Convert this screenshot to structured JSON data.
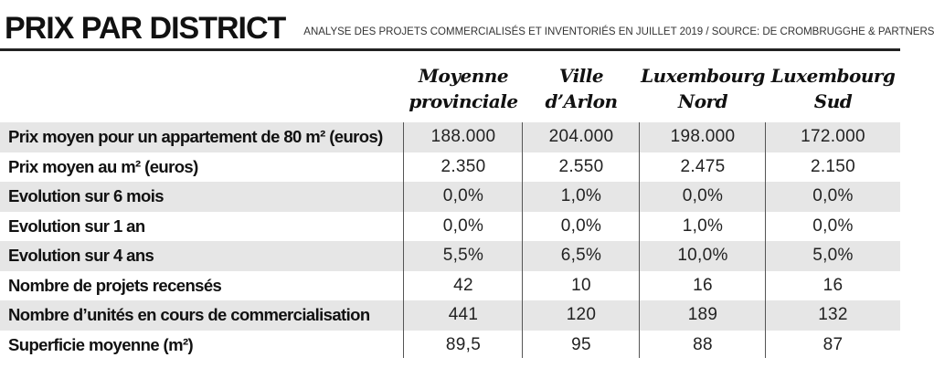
{
  "header": {
    "title": "PRIX PAR DISTRICT",
    "subtitle": "ANALYSE DES PROJETS COMMERCIALISÉS ET INVENTORIÉS EN JUILLET 2019 / SOURCE: DE CROMBRUGGHE & PARTNERS"
  },
  "chart_data": {
    "type": "table",
    "columns": [
      {
        "line1": "Moyenne",
        "line2": "provinciale"
      },
      {
        "line1": "Ville",
        "line2": "d’Arlon"
      },
      {
        "line1": "Luxembourg",
        "line2": "Nord"
      },
      {
        "line1": "Luxembourg",
        "line2": "Sud"
      }
    ],
    "rows": [
      {
        "label": "Prix moyen pour un appartement de 80 m² (euros)",
        "values": [
          "188.000",
          "204.000",
          "198.000",
          "172.000"
        ]
      },
      {
        "label": "Prix moyen au m² (euros)",
        "values": [
          "2.350",
          "2.550",
          "2.475",
          "2.150"
        ]
      },
      {
        "label": "Evolution sur 6 mois",
        "values": [
          "0,0%",
          "1,0%",
          "0,0%",
          "0,0%"
        ]
      },
      {
        "label": "Evolution sur 1 an",
        "values": [
          "0,0%",
          "0,0%",
          "1,0%",
          "0,0%"
        ]
      },
      {
        "label": "Evolution sur 4 ans",
        "values": [
          "5,5%",
          "6,5%",
          "10,0%",
          "5,0%"
        ]
      },
      {
        "label": "Nombre de projets recensés",
        "values": [
          "42",
          "10",
          "16",
          "16"
        ]
      },
      {
        "label": "Nombre d’unités en cours de commercialisation",
        "values": [
          "441",
          "120",
          "189",
          "132"
        ]
      },
      {
        "label": "Superficie moyenne (m²)",
        "values": [
          "89,5",
          "95",
          "88",
          "87"
        ]
      }
    ]
  }
}
